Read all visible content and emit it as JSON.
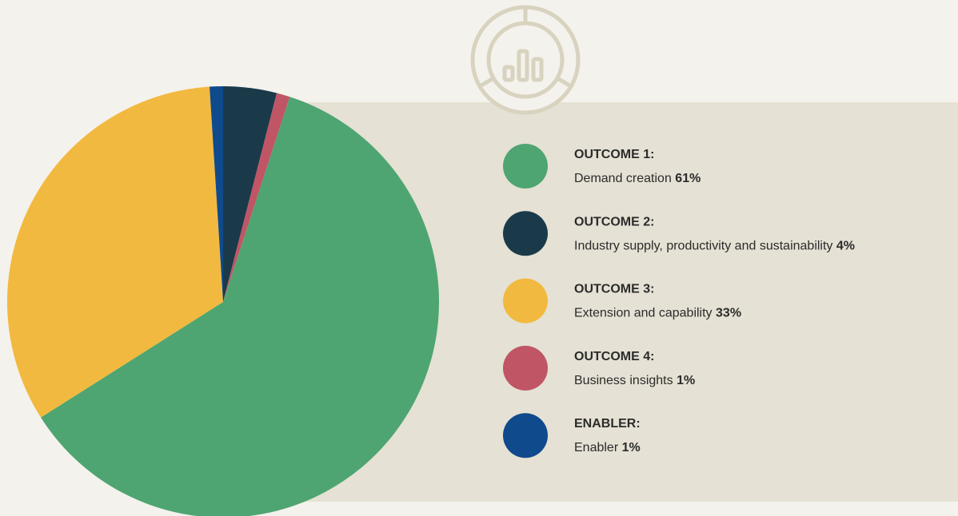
{
  "chart_data": {
    "type": "pie",
    "categories": [
      "OUTCOME 1:",
      "OUTCOME 2:",
      "OUTCOME 3:",
      "OUTCOME 4:",
      "ENABLER:"
    ],
    "descriptions": [
      "Demand creation",
      "Industry supply, productivity and sustainability",
      "Extension and capability",
      "Business insights",
      "Enabler"
    ],
    "values": [
      61,
      4,
      33,
      1,
      1
    ],
    "value_labels": [
      "61%",
      "4%",
      "33%",
      "1%",
      "1%"
    ],
    "colors": [
      "#4ea571",
      "#1a3a4a",
      "#f2b940",
      "#c05565",
      "#0f4a8c"
    ]
  }
}
